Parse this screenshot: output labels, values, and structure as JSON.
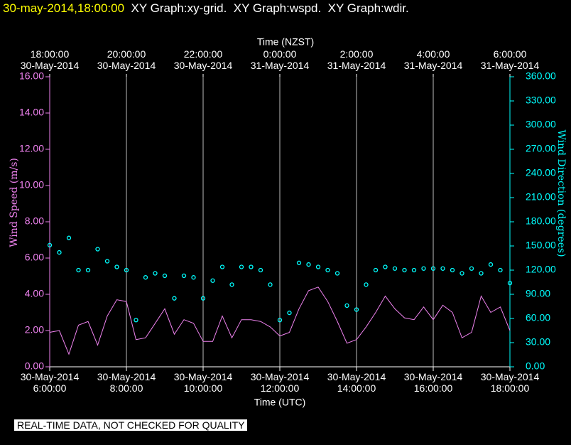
{
  "header": {
    "stamp": "30-may-2014,18:00:00",
    "title": "XY Graph:xy-grid.  XY Graph:wspd.  XY Graph:wdir."
  },
  "chart_data": {
    "type": "line",
    "xlabel": "Time (UTC)",
    "x2label": "Time (NZST)",
    "ylabel": "Wind Speed (m/s)",
    "y2label": "Wind Direction (degrees)",
    "xlim": [
      6,
      18
    ],
    "xticks": [
      {
        "value": 6,
        "label": "30-May-2014\n6:00:00"
      },
      {
        "value": 8,
        "label": "30-May-2014\n8:00:00"
      },
      {
        "value": 10,
        "label": "30-May-2014\n10:00:00"
      },
      {
        "value": 12,
        "label": "30-May-2014\n12:00:00"
      },
      {
        "value": 14,
        "label": "30-May-2014\n14:00:00"
      },
      {
        "value": 16,
        "label": "30-May-2014\n16:00:00"
      },
      {
        "value": 18,
        "label": "30-May-2014\n18:00:00"
      }
    ],
    "x2ticks": [
      {
        "value": 6,
        "label": "18:00:00\n30-May-2014"
      },
      {
        "value": 8,
        "label": "20:00:00\n30-May-2014"
      },
      {
        "value": 10,
        "label": "22:00:00\n30-May-2014"
      },
      {
        "value": 12,
        "label": "0:00:00\n31-May-2014"
      },
      {
        "value": 14,
        "label": "2:00:00\n31-May-2014"
      },
      {
        "value": 16,
        "label": "4:00:00\n31-May-2014"
      },
      {
        "value": 18,
        "label": "6:00:00\n31-May-2014"
      }
    ],
    "ylim": [
      0,
      16
    ],
    "yticks": [
      {
        "value": 0,
        "label": "0.00"
      },
      {
        "value": 2,
        "label": "2.00"
      },
      {
        "value": 4,
        "label": "4.00"
      },
      {
        "value": 6,
        "label": "6.00"
      },
      {
        "value": 8,
        "label": "8.00"
      },
      {
        "value": 10,
        "label": "10.00"
      },
      {
        "value": 12,
        "label": "12.00"
      },
      {
        "value": 14,
        "label": "14.00"
      },
      {
        "value": 16,
        "label": "16.00"
      }
    ],
    "y2lim": [
      0,
      360
    ],
    "y2ticks": [
      {
        "value": 0,
        "label": "0.00"
      },
      {
        "value": 30,
        "label": "30.00"
      },
      {
        "value": 60,
        "label": "60.00"
      },
      {
        "value": 90,
        "label": "90.00"
      },
      {
        "value": 120,
        "label": "120.00"
      },
      {
        "value": 150,
        "label": "150.00"
      },
      {
        "value": 180,
        "label": "180.00"
      },
      {
        "value": 210,
        "label": "210.00"
      },
      {
        "value": 240,
        "label": "240.00"
      },
      {
        "value": 270,
        "label": "270.00"
      },
      {
        "value": 300,
        "label": "300.00"
      },
      {
        "value": 330,
        "label": "330.00"
      },
      {
        "value": 360,
        "label": "360.00"
      }
    ],
    "grid": true,
    "x": [
      6,
      6.25,
      6.5,
      6.75,
      7,
      7.25,
      7.5,
      7.75,
      8,
      8.25,
      8.5,
      8.75,
      9,
      9.25,
      9.5,
      9.75,
      10,
      10.25,
      10.5,
      10.75,
      11,
      11.25,
      11.5,
      11.75,
      12,
      12.25,
      12.5,
      12.75,
      13,
      13.25,
      13.5,
      13.75,
      14,
      14.25,
      14.5,
      14.75,
      15,
      15.25,
      15.5,
      15.75,
      16,
      16.25,
      16.5,
      16.75,
      17,
      17.25,
      17.5,
      17.75,
      18
    ],
    "series": [
      {
        "color": "#ee82ee",
        "style": "line",
        "values": [
          1.9,
          2.0,
          0.7,
          2.3,
          2.5,
          1.2,
          2.8,
          3.7,
          3.6,
          1.5,
          1.6,
          2.4,
          3.2,
          1.8,
          2.6,
          2.4,
          1.4,
          1.4,
          2.8,
          1.6,
          2.6,
          2.6,
          2.5,
          2.2,
          1.7,
          1.9,
          3.2,
          4.2,
          4.4,
          3.6,
          2.5,
          1.3,
          1.5,
          2.2,
          3.0,
          3.9,
          3.2,
          2.7,
          2.6,
          3.3,
          2.6,
          3.4,
          3.0,
          1.6,
          1.9,
          3.9,
          3.0,
          3.3,
          2.0
        ]
      },
      {
        "color": "#00ffff",
        "style": "markers",
        "axis": "y2",
        "values": [
          151,
          142,
          160,
          120,
          120,
          146,
          131,
          124,
          120,
          58,
          111,
          116,
          113,
          85,
          113,
          111,
          85,
          107,
          124,
          102,
          124,
          124,
          120,
          102,
          58,
          67,
          129,
          127,
          124,
          120,
          116,
          76,
          71,
          102,
          120,
          124,
          122,
          120,
          120,
          122,
          122,
          122,
          120,
          116,
          122,
          116,
          127,
          120,
          104
        ]
      }
    ]
  },
  "footer": {
    "note": "REAL-TIME DATA, NOT CHECKED FOR QUALITY"
  }
}
